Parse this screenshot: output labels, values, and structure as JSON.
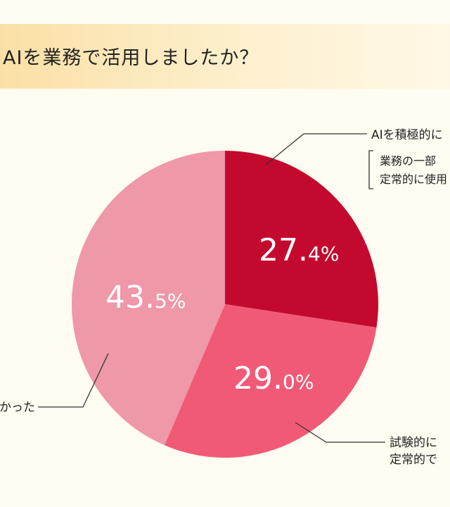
{
  "title": "AIを業務で活用しましたか？",
  "chart_data": {
    "type": "pie",
    "slices": [
      {
        "value": 27.4,
        "int_part": "27.",
        "dec_part": "4",
        "unit": "%",
        "color": "#c30a2e",
        "label_lines": [
          "AIを積極的に",
          "業務の一部",
          "定常的に使用"
        ]
      },
      {
        "value": 29.0,
        "int_part": "29.",
        "dec_part": "0",
        "unit": "%",
        "color": "#f15a76",
        "label_lines": [
          "試験的に",
          "定常的で"
        ]
      },
      {
        "value": 43.5,
        "int_part": "43.",
        "dec_part": "5",
        "unit": "%",
        "color": "#ee98a8",
        "label_lines": [
          "かった"
        ]
      }
    ]
  }
}
